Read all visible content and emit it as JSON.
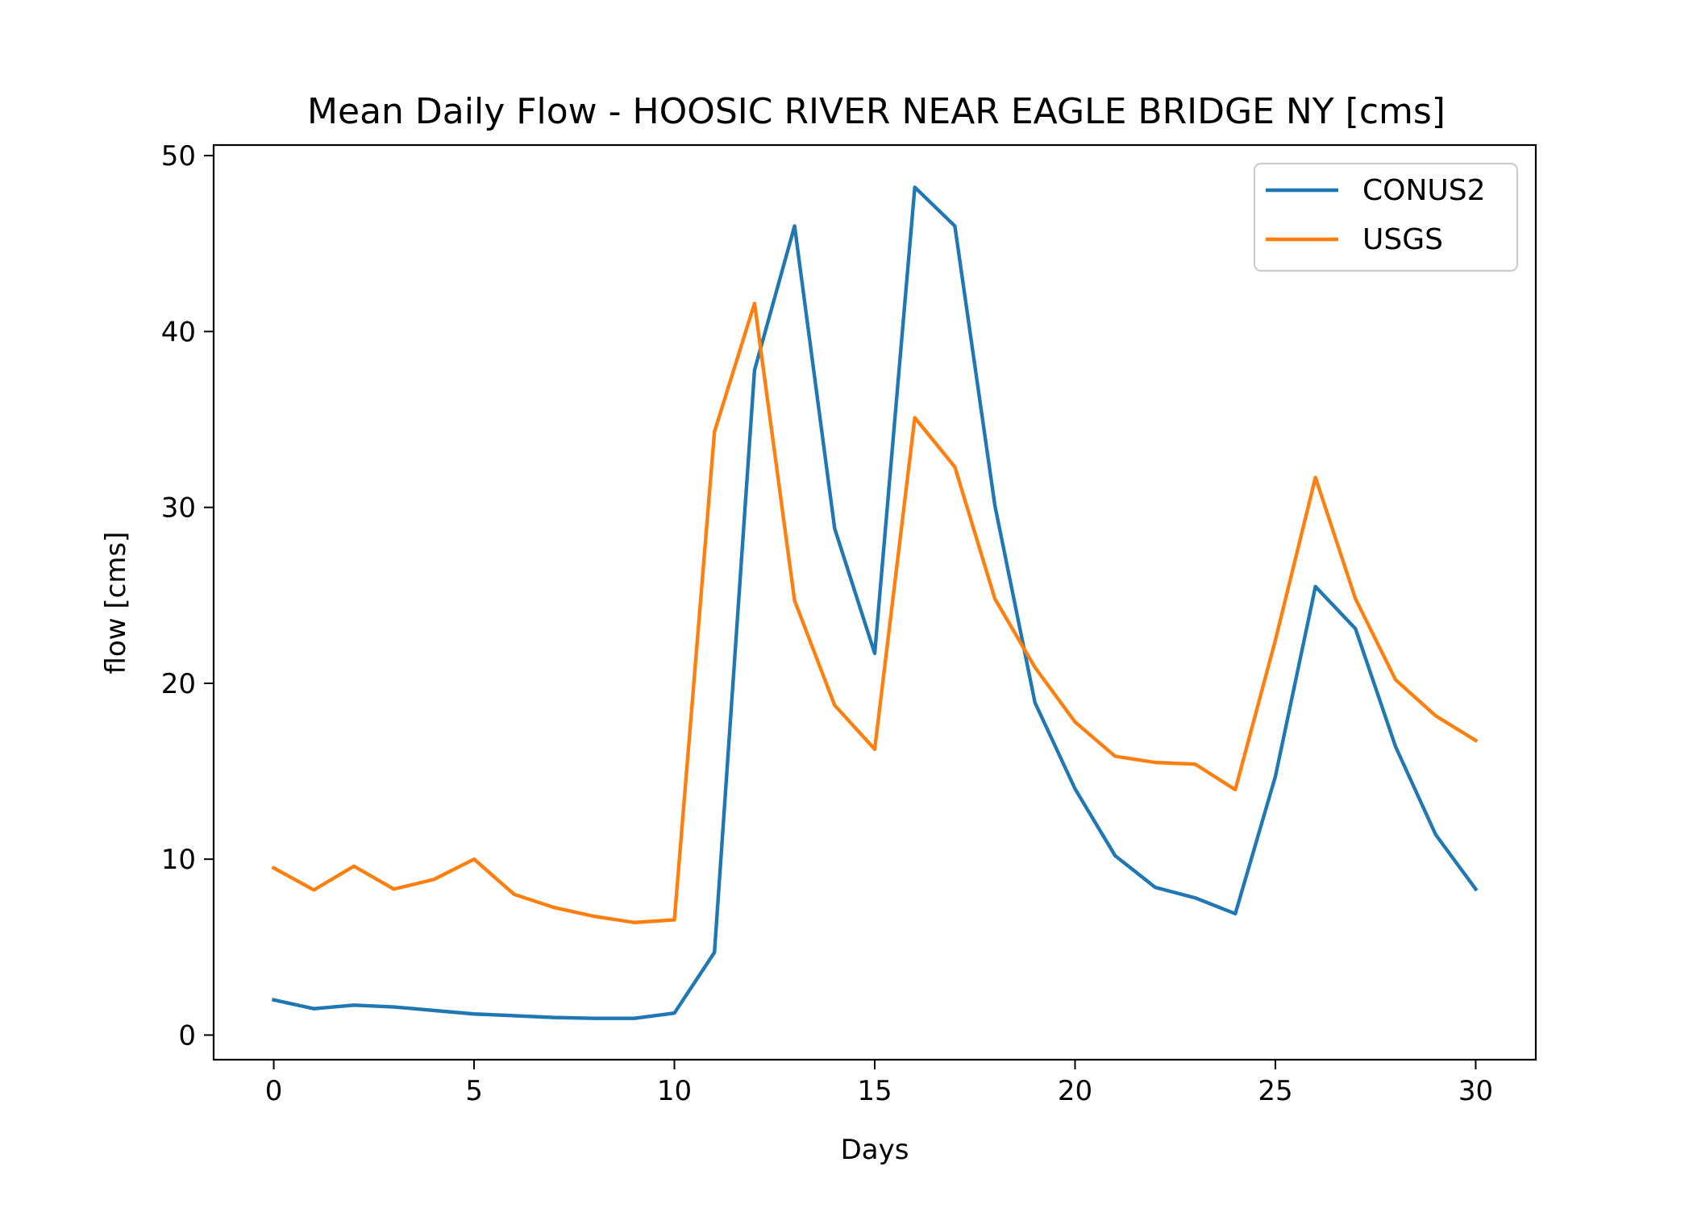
{
  "chart_data": {
    "type": "line",
    "title": "Mean Daily Flow - HOOSIC RIVER NEAR EAGLE BRIDGE NY [cms]",
    "xlabel": "Days",
    "ylabel": "flow [cms]",
    "xlim": [
      -1.5,
      31.5
    ],
    "ylim": [
      -1.4,
      50.6
    ],
    "xticks": [
      0,
      5,
      10,
      15,
      20,
      25,
      30
    ],
    "yticks": [
      0,
      10,
      20,
      30,
      40,
      50
    ],
    "grid": false,
    "legend_position": "top-right",
    "x": [
      0,
      1,
      2,
      3,
      4,
      5,
      6,
      7,
      8,
      9,
      10,
      11,
      12,
      13,
      14,
      15,
      16,
      17,
      18,
      19,
      20,
      21,
      22,
      23,
      24,
      25,
      26,
      27,
      28,
      29,
      30
    ],
    "series": [
      {
        "name": "CONUS2",
        "color": "#1f77b4",
        "values": [
          2.0,
          1.5,
          1.7,
          1.6,
          1.4,
          1.2,
          1.1,
          1.0,
          0.95,
          0.95,
          1.25,
          4.7,
          37.8,
          46.0,
          28.8,
          21.7,
          48.2,
          46.0,
          30.1,
          18.9,
          14.0,
          10.2,
          8.4,
          7.8,
          6.9,
          14.7,
          25.5,
          23.1,
          16.4,
          11.4,
          8.3
        ]
      },
      {
        "name": "USGS",
        "color": "#ff7f0e",
        "values": [
          9.5,
          8.25,
          9.6,
          8.3,
          8.85,
          10.0,
          8.0,
          7.25,
          6.75,
          6.4,
          6.55,
          34.3,
          41.6,
          24.7,
          18.75,
          16.25,
          35.1,
          32.3,
          24.8,
          20.9,
          17.8,
          15.85,
          15.5,
          15.4,
          13.95,
          22.45,
          31.7,
          24.8,
          20.2,
          18.15,
          16.75
        ]
      }
    ]
  }
}
